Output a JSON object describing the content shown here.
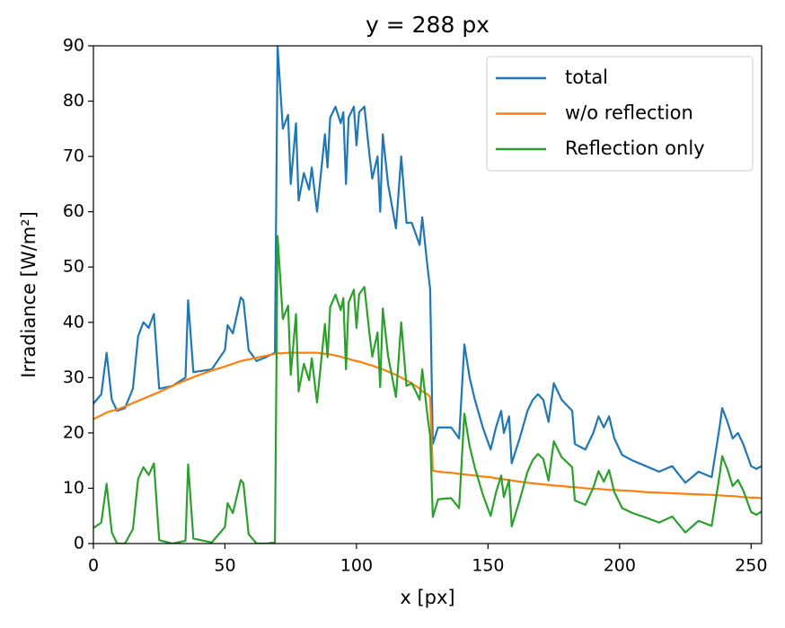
{
  "chart_data": {
    "type": "line",
    "title": "y = 288 px",
    "x_label": "x [px]",
    "y_label": "Irradiance [W/m²]",
    "x": [
      0,
      3,
      5,
      7,
      9,
      12,
      15,
      17,
      19,
      21,
      23,
      25,
      30,
      35,
      36,
      38,
      45,
      50,
      51,
      53,
      56,
      57,
      59,
      62,
      66,
      69,
      70,
      72,
      74,
      75,
      77,
      78,
      80,
      82,
      83,
      85,
      88,
      89,
      90,
      92,
      94,
      95,
      96,
      97,
      99,
      100,
      101,
      103,
      105,
      106,
      108,
      109,
      110,
      112,
      115,
      117,
      119,
      121,
      124,
      125,
      127,
      128,
      129,
      131,
      133,
      136,
      139,
      141,
      143,
      145,
      148,
      151,
      153,
      155,
      156,
      158,
      159,
      162,
      165,
      167,
      169,
      171,
      173,
      175,
      178,
      180,
      182,
      183,
      187,
      190,
      192,
      194,
      196,
      198,
      201,
      205,
      210,
      215,
      220,
      225,
      230,
      235,
      238,
      239,
      241,
      243,
      245,
      247,
      250,
      252,
      254
    ],
    "series": [
      {
        "name": "total",
        "color": "#1f77b4",
        "values": [
          25.3,
          27,
          34.5,
          26,
          24,
          24.5,
          28,
          37.5,
          40,
          39,
          41.5,
          28,
          28.5,
          30,
          44,
          31,
          31.5,
          35,
          39.5,
          38,
          44.5,
          44,
          35,
          33,
          33.8,
          34.5,
          90,
          75,
          77.5,
          65,
          76,
          62,
          67,
          64,
          68,
          60,
          74,
          68,
          77,
          79,
          76,
          78,
          65,
          77,
          79,
          72,
          78,
          79,
          70,
          66,
          70,
          60,
          74,
          65,
          57,
          70,
          58,
          58,
          54,
          59,
          50,
          46,
          18,
          21,
          21,
          21,
          19,
          36,
          30,
          26,
          21,
          17,
          21,
          24,
          20,
          23,
          14.5,
          19,
          24,
          26,
          27,
          26,
          22,
          29,
          26,
          25,
          24,
          18,
          17,
          20,
          23,
          21,
          23,
          19,
          16,
          15,
          14,
          13,
          14,
          11,
          13,
          12,
          21,
          24.5,
          22,
          19,
          20,
          18,
          14,
          13.5,
          14
        ]
      },
      {
        "name": "w/o reflection",
        "color": "#ff7f0e",
        "values": [
          22.5,
          23.2,
          23.7,
          24,
          24.2,
          24.8,
          25.4,
          25.8,
          26.2,
          26.6,
          27,
          27.4,
          28.5,
          29.5,
          29.7,
          30.1,
          31.3,
          32,
          32.2,
          32.5,
          33,
          33.1,
          33.3,
          33.6,
          34,
          34.3,
          34.4,
          34.4,
          34.5,
          34.5,
          34.5,
          34.5,
          34.5,
          34.5,
          34.5,
          34.5,
          34.3,
          34.3,
          34.2,
          34,
          33.8,
          33.6,
          33.5,
          33.4,
          33.1,
          33,
          32.9,
          32.6,
          32.3,
          32.2,
          31.8,
          31.7,
          31.5,
          31.1,
          30.5,
          30,
          29.5,
          29,
          28,
          27.5,
          27,
          26.5,
          13.2,
          13,
          12.9,
          12.8,
          12.6,
          12.5,
          12.4,
          12.3,
          12.1,
          12,
          11.8,
          11.7,
          11.6,
          11.5,
          11.4,
          11.2,
          11,
          10.9,
          10.8,
          10.7,
          10.6,
          10.5,
          10.4,
          10.3,
          10.2,
          10.2,
          10,
          9.9,
          9.9,
          9.8,
          9.7,
          9.7,
          9.6,
          9.5,
          9.3,
          9.2,
          9.1,
          9,
          8.9,
          8.8,
          8.7,
          8.7,
          8.6,
          8.6,
          8.5,
          8.4,
          8.3,
          8.3,
          8.2
        ]
      },
      {
        "name": "Reflection only",
        "color": "#2ca02c",
        "values": [
          2.8,
          3.8,
          10.8,
          2,
          0,
          0,
          2.6,
          11.7,
          13.8,
          12.4,
          14.5,
          0.6,
          0,
          0.5,
          14.3,
          0.9,
          0.2,
          3,
          7.3,
          5.5,
          11.5,
          10.9,
          1.7,
          0,
          0,
          0.2,
          55.6,
          40.6,
          43,
          30.5,
          41.5,
          27.5,
          32.5,
          29.5,
          33.5,
          25.5,
          39.7,
          33.7,
          42.8,
          45,
          42.2,
          44.4,
          31.5,
          43.6,
          45.9,
          39,
          45.1,
          46.4,
          37.7,
          33.8,
          38.2,
          28.3,
          42.5,
          33.9,
          26.5,
          40,
          28.5,
          29,
          26,
          31.5,
          23,
          19.5,
          4.8,
          8,
          8.1,
          8.2,
          6.4,
          23.5,
          17.6,
          13.7,
          8.9,
          5,
          9.2,
          12.3,
          8.4,
          11.5,
          3.1,
          7.8,
          13,
          15.1,
          16.2,
          15.3,
          11.4,
          18.5,
          15.6,
          14.7,
          13.8,
          7.8,
          7,
          10.1,
          13.1,
          11.2,
          13.3,
          9.3,
          6.4,
          5.5,
          4.7,
          3.8,
          4.9,
          2,
          4.1,
          3.2,
          12.3,
          15.8,
          13.4,
          10.4,
          11.5,
          9.6,
          5.7,
          5.2,
          5.8
        ]
      }
    ],
    "xlim": [
      0,
      254
    ],
    "ylim": [
      0,
      90
    ],
    "xticks": [
      0,
      50,
      100,
      150,
      200,
      250
    ],
    "yticks": [
      0,
      10,
      20,
      30,
      40,
      50,
      60,
      70,
      80,
      90
    ],
    "legend": "upper right"
  }
}
